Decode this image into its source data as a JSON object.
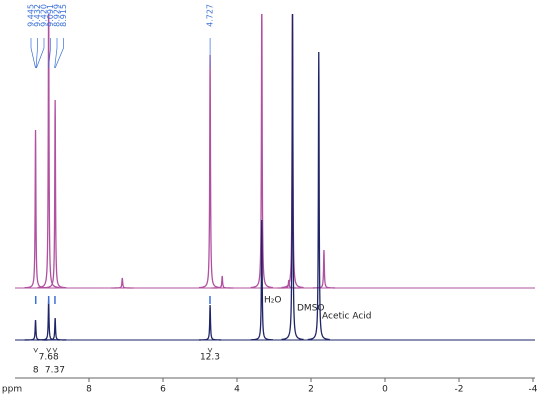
{
  "chart_data": {
    "type": "nmr",
    "xlabel": "ppm",
    "xlim": [
      10,
      -4
    ],
    "xticks": [
      8,
      6,
      4,
      2,
      0,
      -2,
      -4
    ],
    "series": [
      {
        "color": "#b0509f",
        "peaks": {
          "x": [
            9.445,
            9.091,
            8.915,
            7.1,
            4.727,
            4.4,
            3.33,
            2.5,
            2.6,
            1.65
          ],
          "heights": [
            158,
            290,
            188,
            10,
            233,
            12,
            290,
            290,
            8,
            38
          ]
        }
      },
      {
        "color": "#1e2466",
        "peaks": {
          "x": [
            9.445,
            9.091,
            8.915,
            4.727,
            3.33,
            2.5,
            1.79
          ],
          "heights": [
            20,
            40,
            22,
            35,
            120,
            330,
            288
          ]
        }
      }
    ],
    "peak_labels": [
      9.445,
      9.432,
      {
        "value": 9.42,
        "label": "9.420"
      },
      9.091,
      8.929,
      8.915,
      4.727
    ],
    "integrals": {
      "x": [
        9.44,
        9.09,
        8.92,
        4.73
      ],
      "values": [
        8,
        7.68,
        7.37,
        12.3
      ]
    },
    "annotations": [
      "H₂O",
      "DMSO",
      "Acetic Acid"
    ]
  }
}
